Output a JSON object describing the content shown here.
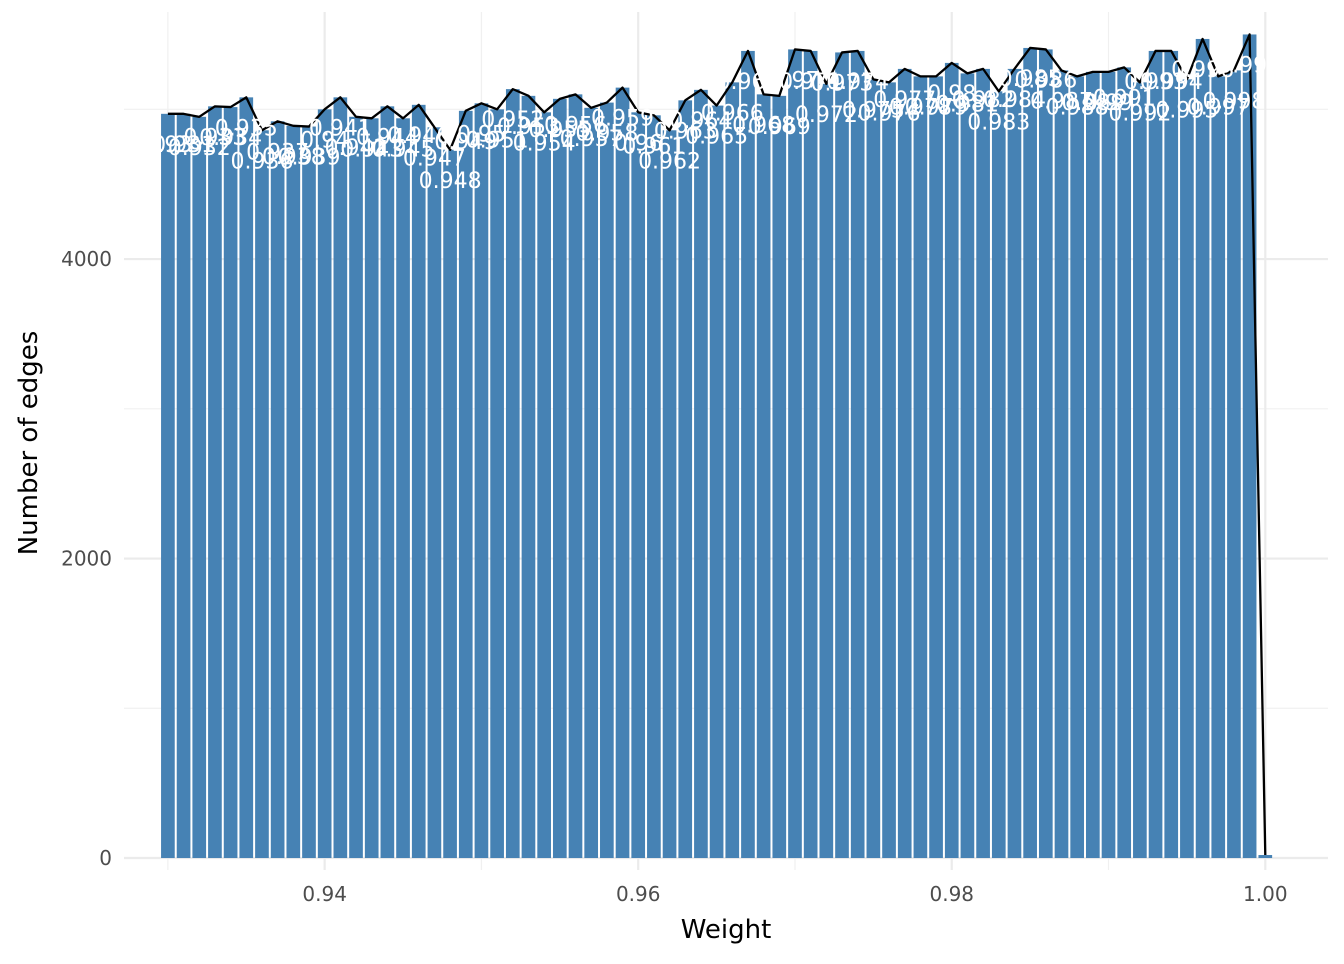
{
  "chart_data": {
    "type": "bar",
    "title": "",
    "xlabel": "Weight",
    "ylabel": "Number of edges",
    "xlim": [
      0.9272,
      1.004
    ],
    "ylim": [
      -80,
      5650
    ],
    "x_ticks": [
      0.94,
      0.96,
      0.98,
      1.0
    ],
    "x_tick_labels": [
      "0.94",
      "0.96",
      "0.98",
      "1.00"
    ],
    "y_ticks": [
      0,
      2000,
      4000
    ],
    "y_tick_labels": [
      "0",
      "2000",
      "4000"
    ],
    "y_minor_ticks": [
      1000,
      3000,
      5000
    ],
    "grid": true,
    "legend": "none",
    "bar_color": "#4682B4",
    "line_color": "#000000",
    "label_color": "#ffffff",
    "bin_width": 0.001,
    "x": [
      0.93,
      0.931,
      0.932,
      0.933,
      0.934,
      0.935,
      0.936,
      0.937,
      0.938,
      0.939,
      0.94,
      0.941,
      0.942,
      0.943,
      0.944,
      0.945,
      0.946,
      0.947,
      0.948,
      0.949,
      0.95,
      0.951,
      0.952,
      0.953,
      0.954,
      0.955,
      0.956,
      0.957,
      0.958,
      0.959,
      0.96,
      0.961,
      0.962,
      0.963,
      0.964,
      0.965,
      0.966,
      0.967,
      0.968,
      0.969,
      0.97,
      0.971,
      0.972,
      0.973,
      0.974,
      0.975,
      0.976,
      0.977,
      0.978,
      0.979,
      0.98,
      0.981,
      0.982,
      0.983,
      0.984,
      0.985,
      0.986,
      0.987,
      0.988,
      0.989,
      0.99,
      0.991,
      0.992,
      0.993,
      0.994,
      0.995,
      0.996,
      0.997,
      0.998,
      0.999,
      1.0
    ],
    "values": [
      4970,
      4970,
      4950,
      5020,
      5015,
      5080,
      4860,
      4920,
      4890,
      4885,
      5000,
      5080,
      4950,
      4940,
      5020,
      4940,
      5030,
      4880,
      4730,
      4990,
      5040,
      5000,
      5135,
      5090,
      4980,
      5070,
      5100,
      5010,
      5045,
      5145,
      4980,
      4960,
      4860,
      5060,
      5130,
      5025,
      5180,
      5390,
      5100,
      5090,
      5400,
      5390,
      5170,
      5380,
      5390,
      5200,
      5180,
      5270,
      5220,
      5220,
      5310,
      5240,
      5270,
      5120,
      5270,
      5410,
      5400,
      5260,
      5220,
      5250,
      5250,
      5280,
      5180,
      5390,
      5390,
      5200,
      5470,
      5220,
      5260,
      5500,
      20
    ],
    "labels": [
      "0.93",
      "0.931",
      "0.932",
      "0.933",
      "0.934",
      "0.935",
      "0.936",
      "0.937",
      "0.938",
      "0.939",
      "0.94",
      "0.941",
      "0.942",
      "0.943",
      "0.944",
      "0.945",
      "0.946",
      "0.947",
      "0.948",
      "0.949",
      "0.95",
      "0.951",
      "0.952",
      "0.953",
      "0.954",
      "0.955",
      "0.956",
      "0.957",
      "0.958",
      "0.959",
      "0.96",
      "0.961",
      "0.962",
      "0.963",
      "0.964",
      "0.965",
      "0.966",
      "0.967",
      "0.968",
      "0.969",
      "0.97",
      "0.971",
      "0.972",
      "0.973",
      "0.974",
      "0.975",
      "0.976",
      "0.977",
      "0.978",
      "0.979",
      "0.98",
      "0.981",
      "0.982",
      "0.983",
      "0.984",
      "0.985",
      "0.986",
      "0.987",
      "0.988",
      "0.989",
      "0.99",
      "0.991",
      "0.992",
      "0.993",
      "0.994",
      "0.995",
      "0.996",
      "0.997",
      "0.998",
      "0.999",
      "1"
    ]
  }
}
